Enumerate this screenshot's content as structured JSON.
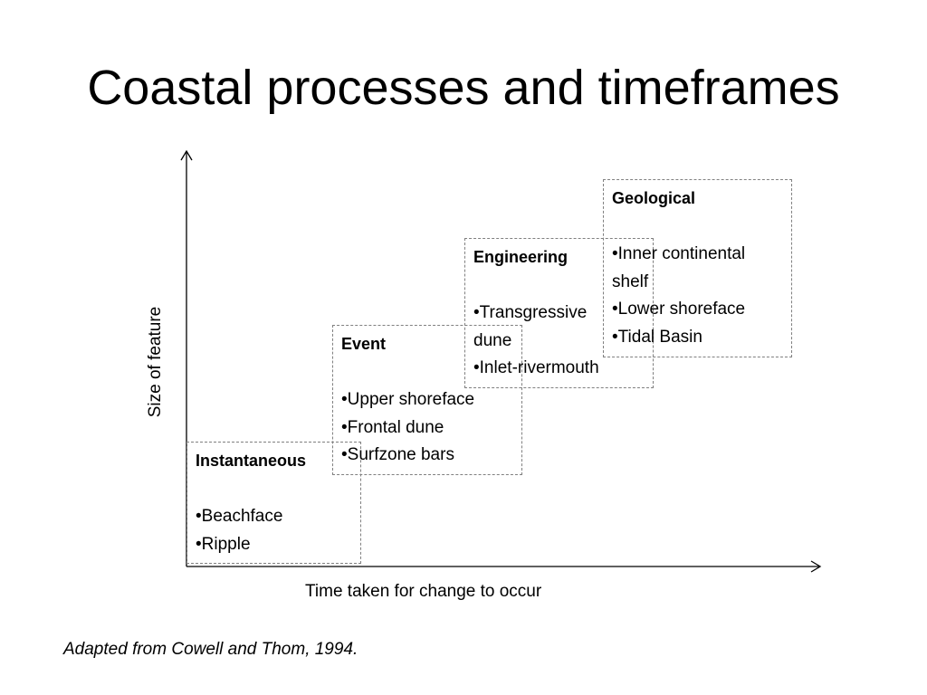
{
  "title": "Coastal processes and timeframes",
  "axes": {
    "y_label": "Size of feature",
    "x_label": "Time taken for change to occur"
  },
  "boxes": [
    {
      "title": "Instantaneous",
      "items": [
        "Beachface",
        "Ripple"
      ]
    },
    {
      "title": "Event",
      "items": [
        "Upper shoreface",
        "Frontal dune",
        "Surfzone bars"
      ]
    },
    {
      "title": "Engineering",
      "items": [
        "Transgressive dune",
        "Inlet-rivermouth"
      ]
    },
    {
      "title": "Geological",
      "items": [
        "Inner continental shelf",
        "Lower shoreface",
        "Tidal Basin"
      ]
    }
  ],
  "caption": "Adapted from Cowell and Thom, 1994."
}
